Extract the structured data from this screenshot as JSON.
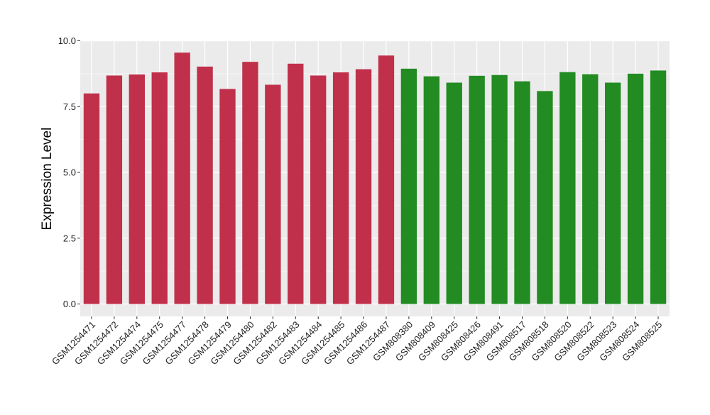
{
  "chart_data": {
    "type": "bar",
    "title": "",
    "xlabel": "",
    "ylabel": "Expression Level",
    "ylim": [
      0,
      10
    ],
    "yticks": [
      "0.0",
      "2.5",
      "5.0",
      "7.5",
      "10.0"
    ],
    "ytick_values": [
      0,
      2.5,
      5,
      7.5,
      10
    ],
    "grid": true,
    "background_color": "#ebebeb",
    "grid_color": "#ffffff",
    "categories": [
      "GSM1254471",
      "GSM1254472",
      "GSM1254474",
      "GSM1254475",
      "GSM1254477",
      "GSM1254478",
      "GSM1254479",
      "GSM1254480",
      "GSM1254482",
      "GSM1254483",
      "GSM1254484",
      "GSM1254485",
      "GSM1254486",
      "GSM1254487",
      "GSM808380",
      "GSM808409",
      "GSM808425",
      "GSM808426",
      "GSM808491",
      "GSM808517",
      "GSM808518",
      "GSM808520",
      "GSM808522",
      "GSM808523",
      "GSM808524",
      "GSM808525"
    ],
    "values": [
      8.0,
      8.68,
      8.72,
      8.8,
      9.55,
      9.02,
      8.17,
      9.2,
      8.33,
      9.13,
      8.68,
      8.8,
      8.92,
      9.44,
      8.94,
      8.65,
      8.41,
      8.67,
      8.7,
      8.46,
      8.09,
      8.81,
      8.73,
      8.41,
      8.75,
      8.87
    ],
    "bar_colors": [
      "#c0304a",
      "#c0304a",
      "#c0304a",
      "#c0304a",
      "#c0304a",
      "#c0304a",
      "#c0304a",
      "#c0304a",
      "#c0304a",
      "#c0304a",
      "#c0304a",
      "#c0304a",
      "#c0304a",
      "#c0304a",
      "#228b22",
      "#228b22",
      "#228b22",
      "#228b22",
      "#228b22",
      "#228b22",
      "#228b22",
      "#228b22",
      "#228b22",
      "#228b22",
      "#228b22",
      "#228b22"
    ]
  }
}
